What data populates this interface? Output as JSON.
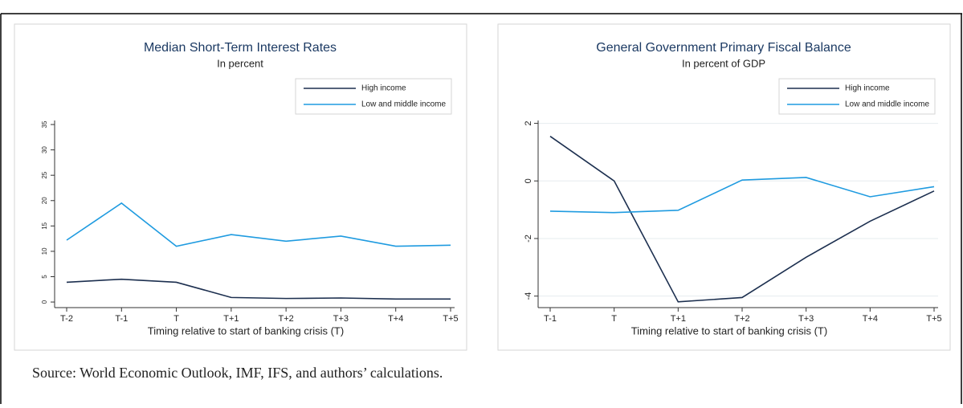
{
  "chart_data": [
    {
      "type": "line",
      "title": "Median Short-Term Interest Rates",
      "subtitle": "In percent",
      "x_label": "Timing relative to start of banking crisis (T)",
      "categories": [
        "T-2",
        "T-1",
        "T",
        "T+1",
        "T+2",
        "T+3",
        "T+4",
        "T+5"
      ],
      "series": [
        {
          "name": "High income",
          "color": "#1c2f4f",
          "values": [
            3.9,
            4.5,
            3.9,
            0.9,
            0.7,
            0.8,
            0.6,
            0.6
          ]
        },
        {
          "name": "Low and middle income",
          "color": "#1f9be0",
          "values": [
            12.2,
            19.5,
            11.0,
            13.3,
            12.0,
            13.0,
            11.0,
            11.2
          ]
        }
      ],
      "ylim": [
        -1.1,
        35.8
      ],
      "yticks": [
        0,
        5,
        10,
        15,
        20,
        25,
        30,
        35
      ],
      "grid": false,
      "legend": "top-right"
    },
    {
      "type": "line",
      "title": "General Government Primary Fiscal Balance",
      "subtitle": "In percent of GDP",
      "x_label": "Timing relative to start of banking crisis (T)",
      "categories": [
        "T-1",
        "T",
        "T+1",
        "T+2",
        "T+3",
        "T+4",
        "T+5"
      ],
      "series": [
        {
          "name": "High income",
          "color": "#1c2f4f",
          "values": [
            1.55,
            0.0,
            -4.2,
            -4.05,
            -2.65,
            -1.4,
            -0.35
          ]
        },
        {
          "name": "Low and middle income",
          "color": "#1f9be0",
          "values": [
            -1.05,
            -1.1,
            -1.02,
            0.03,
            0.12,
            -0.55,
            -0.2
          ]
        }
      ],
      "ylim": [
        -4.4,
        2.1
      ],
      "yticks": [
        -4,
        -2,
        0,
        2
      ],
      "grid": true,
      "legend": "top-right"
    }
  ],
  "source": "Source: World Economic Outlook, IMF, IFS, and authors’ calculations."
}
